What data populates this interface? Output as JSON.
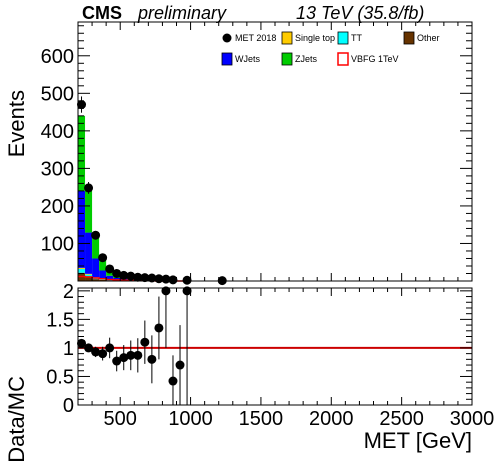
{
  "header": {
    "cms": "CMS",
    "preliminary": "preliminary",
    "lumi": "13 TeV (35.8/fb)"
  },
  "chart_data": {
    "type": "bar",
    "stacked": true,
    "title": "",
    "xlabel": "MET [GeV]",
    "xlim": [
      200,
      3000
    ],
    "bin_width": 50,
    "bin_edges_start": 200,
    "x_ticks": [
      "500",
      "1000",
      "1500",
      "2000",
      "2500",
      "3000"
    ],
    "upper": {
      "ylabel": "Events",
      "ylim": [
        0,
        690
      ],
      "y_ticks": [
        "100",
        "200",
        "300",
        "400",
        "500",
        "600"
      ],
      "legend": [
        {
          "label": "MET 2018",
          "style": "marker",
          "color": "#000000"
        },
        {
          "label": "Single top",
          "style": "fill",
          "color": "#ffcc00"
        },
        {
          "label": "TT",
          "style": "fill",
          "color": "#00ffff"
        },
        {
          "label": "Other",
          "style": "fill",
          "color": "#663300"
        },
        {
          "label": "WJets",
          "style": "fill",
          "color": "#0000ff"
        },
        {
          "label": "ZJets",
          "style": "fill",
          "color": "#00cc00"
        },
        {
          "label": "VBFG 1TeV",
          "style": "line",
          "color": "#ff0000"
        }
      ],
      "stack": [
        {
          "name": "Other",
          "color": "#663300",
          "values": [
            22,
            10,
            5,
            3,
            2,
            1,
            1,
            1,
            0,
            0,
            0,
            0,
            0,
            0,
            0,
            0
          ]
        },
        {
          "name": "TT",
          "color": "#00ffff",
          "values": [
            10,
            7,
            4,
            2,
            1,
            1,
            1,
            0,
            0,
            0,
            0,
            0,
            0,
            0,
            0,
            0
          ]
        },
        {
          "name": "Single top",
          "color": "#ffcc00",
          "values": [
            3,
            2,
            1,
            1,
            0,
            0,
            0,
            0,
            0,
            0,
            0,
            0,
            0,
            0,
            0,
            0
          ]
        },
        {
          "name": "WJets",
          "color": "#0000ff",
          "values": [
            205,
            110,
            50,
            22,
            11,
            6,
            5,
            4,
            3,
            2,
            1,
            1,
            1,
            1,
            0,
            0
          ]
        },
        {
          "name": "ZJets",
          "color": "#00cc00",
          "values": [
            200,
            122,
            65,
            32,
            16,
            10,
            8,
            6,
            4,
            3,
            2,
            1,
            1,
            1,
            1,
            0
          ]
        }
      ],
      "data": {
        "name": "MET 2018",
        "x": [
          225,
          275,
          325,
          375,
          425,
          475,
          525,
          575,
          625,
          675,
          725,
          775,
          825,
          875,
          975,
          1225
        ],
        "y": [
          470,
          248,
          122,
          62,
          32,
          20,
          15,
          13,
          10,
          9,
          8,
          6,
          5,
          3,
          2,
          1
        ]
      },
      "signal": {
        "name": "VBFG 1TeV",
        "color": "#ff0000",
        "values": [
          12,
          11,
          8,
          6,
          4,
          3,
          2,
          2,
          1,
          1,
          1,
          0,
          0,
          0,
          0,
          0
        ]
      }
    },
    "lower": {
      "ylabel": "Data/MC",
      "ylim": [
        0,
        2.05
      ],
      "y_ticks": [
        "0",
        "0.5",
        "1",
        "1.5",
        "2"
      ],
      "reference_line": 1,
      "reference_color": "#cc0000",
      "points": [
        {
          "x": 225,
          "y": 1.08,
          "err": 0.06
        },
        {
          "x": 275,
          "y": 1.0,
          "err": 0.07
        },
        {
          "x": 325,
          "y": 0.93,
          "err": 0.09
        },
        {
          "x": 375,
          "y": 0.9,
          "err": 0.12
        },
        {
          "x": 425,
          "y": 1.0,
          "err": 0.18
        },
        {
          "x": 475,
          "y": 0.77,
          "err": 0.18
        },
        {
          "x": 525,
          "y": 0.83,
          "err": 0.22
        },
        {
          "x": 575,
          "y": 0.87,
          "err": 0.26
        },
        {
          "x": 625,
          "y": 0.87,
          "err": 0.3
        },
        {
          "x": 675,
          "y": 1.1,
          "err": 0.38
        },
        {
          "x": 725,
          "y": 0.8,
          "err": 0.42
        },
        {
          "x": 775,
          "y": 1.35,
          "err": 0.55
        },
        {
          "x": 825,
          "y": 2.0,
          "err": 1.0
        },
        {
          "x": 875,
          "y": 0.42,
          "err": 0.45
        },
        {
          "x": 925,
          "y": 0.7,
          "err": 0.7
        },
        {
          "x": 975,
          "y": 2.0,
          "err": 2.0
        }
      ]
    }
  }
}
